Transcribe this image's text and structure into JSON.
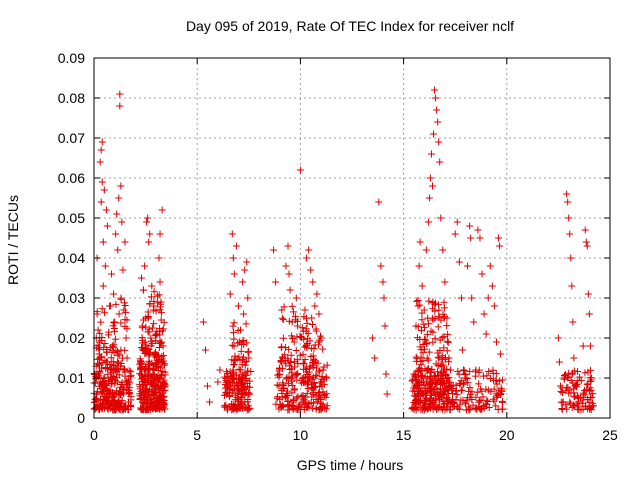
{
  "chart_data": {
    "type": "scatter",
    "title": "Day 095 of 2019, Rate Of TEC Index for receiver nclf",
    "xlabel": "GPS time / hours",
    "ylabel": "ROTI / TECUs",
    "xlim": [
      0,
      25
    ],
    "ylim": [
      0,
      0.09
    ],
    "xticks": [
      0,
      5,
      10,
      15,
      20,
      25
    ],
    "xtick_labels": [
      "0",
      "5",
      "10",
      "15",
      "20",
      "25"
    ],
    "yticks": [
      0,
      0.01,
      0.02,
      0.03,
      0.04,
      0.05,
      0.06,
      0.07,
      0.08,
      0.09
    ],
    "ytick_labels": [
      "0",
      "0.01",
      "0.02",
      "0.03",
      "0.04",
      "0.05",
      "0.06",
      "0.07",
      "0.08",
      "0.09"
    ],
    "grid": true,
    "marker": "plus",
    "color": "#e00000",
    "series": [
      {
        "name": "ROTI",
        "points": [
          [
            0.05,
            0.004
          ],
          [
            0.1,
            0.011
          ],
          [
            0.15,
            0.026
          ],
          [
            0.15,
            0.04
          ],
          [
            0.2,
            0.022
          ],
          [
            0.25,
            0.016
          ],
          [
            0.3,
            0.064
          ],
          [
            0.3,
            0.009
          ],
          [
            0.35,
            0.067
          ],
          [
            0.35,
            0.054
          ],
          [
            0.4,
            0.069
          ],
          [
            0.4,
            0.059
          ],
          [
            0.45,
            0.033
          ],
          [
            0.45,
            0.044
          ],
          [
            0.5,
            0.057
          ],
          [
            0.5,
            0.008
          ],
          [
            0.55,
            0.038
          ],
          [
            0.6,
            0.052
          ],
          [
            0.6,
            0.014
          ],
          [
            0.65,
            0.048
          ],
          [
            0.7,
            0.005
          ],
          [
            0.75,
            0.028
          ],
          [
            0.8,
            0.012
          ],
          [
            0.85,
            0.036
          ],
          [
            0.9,
            0.018
          ],
          [
            0.95,
            0.031
          ],
          [
            1.0,
            0.024
          ],
          [
            1.05,
            0.046
          ],
          [
            1.1,
            0.051
          ],
          [
            1.15,
            0.042
          ],
          [
            1.2,
            0.055
          ],
          [
            1.25,
            0.081
          ],
          [
            1.25,
            0.078
          ],
          [
            1.3,
            0.058
          ],
          [
            1.35,
            0.049
          ],
          [
            1.4,
            0.037
          ],
          [
            1.45,
            0.027
          ],
          [
            1.5,
            0.044
          ],
          [
            1.55,
            0.02
          ],
          [
            1.6,
            0.015
          ],
          [
            1.7,
            0.006
          ],
          [
            2.3,
            0.035
          ],
          [
            2.35,
            0.01
          ],
          [
            2.4,
            0.032
          ],
          [
            2.45,
            0.038
          ],
          [
            2.5,
            0.025
          ],
          [
            2.55,
            0.049
          ],
          [
            2.6,
            0.05
          ],
          [
            2.65,
            0.044
          ],
          [
            2.7,
            0.046
          ],
          [
            2.75,
            0.02
          ],
          [
            2.8,
            0.033
          ],
          [
            2.85,
            0.012
          ],
          [
            2.9,
            0.028
          ],
          [
            2.95,
            0.008
          ],
          [
            3.0,
            0.021
          ],
          [
            3.05,
            0.005
          ],
          [
            3.1,
            0.014
          ],
          [
            3.15,
            0.04
          ],
          [
            3.2,
            0.046
          ],
          [
            3.2,
            0.034
          ],
          [
            3.25,
            0.029
          ],
          [
            3.3,
            0.052
          ],
          [
            3.35,
            0.018
          ],
          [
            3.4,
            0.003
          ],
          [
            5.3,
            0.024
          ],
          [
            5.4,
            0.017
          ],
          [
            5.5,
            0.008
          ],
          [
            5.6,
            0.004
          ],
          [
            6.0,
            0.009
          ],
          [
            6.1,
            0.012
          ],
          [
            6.6,
            0.031
          ],
          [
            6.7,
            0.046
          ],
          [
            6.75,
            0.04
          ],
          [
            6.8,
            0.036
          ],
          [
            6.9,
            0.043
          ],
          [
            7.0,
            0.028
          ],
          [
            7.1,
            0.022
          ],
          [
            7.2,
            0.034
          ],
          [
            7.25,
            0.026
          ],
          [
            7.3,
            0.037
          ],
          [
            7.4,
            0.039
          ],
          [
            7.45,
            0.03
          ],
          [
            7.5,
            0.015
          ],
          [
            7.55,
            0.006
          ],
          [
            8.7,
            0.042
          ],
          [
            8.8,
            0.034
          ],
          [
            9.1,
            0.027
          ],
          [
            9.3,
            0.038
          ],
          [
            9.4,
            0.043
          ],
          [
            9.45,
            0.036
          ],
          [
            9.5,
            0.032
          ],
          [
            9.6,
            0.024
          ],
          [
            9.7,
            0.019
          ],
          [
            9.8,
            0.03
          ],
          [
            10.0,
            0.062
          ],
          [
            10.3,
            0.04
          ],
          [
            10.4,
            0.042
          ],
          [
            10.5,
            0.037
          ],
          [
            10.6,
            0.034
          ],
          [
            10.7,
            0.028
          ],
          [
            10.8,
            0.031
          ],
          [
            10.9,
            0.026
          ],
          [
            11.0,
            0.02
          ],
          [
            11.1,
            0.012
          ],
          [
            13.5,
            0.02
          ],
          [
            13.6,
            0.015
          ],
          [
            13.8,
            0.054
          ],
          [
            13.9,
            0.038
          ],
          [
            14.0,
            0.034
          ],
          [
            14.05,
            0.03
          ],
          [
            14.1,
            0.023
          ],
          [
            14.15,
            0.011
          ],
          [
            14.2,
            0.006
          ],
          [
            15.5,
            0.011
          ],
          [
            15.6,
            0.023
          ],
          [
            15.7,
            0.028
          ],
          [
            15.75,
            0.038
          ],
          [
            15.8,
            0.044
          ],
          [
            15.9,
            0.033
          ],
          [
            16.0,
            0.027
          ],
          [
            16.1,
            0.042
          ],
          [
            16.2,
            0.049
          ],
          [
            16.25,
            0.055
          ],
          [
            16.3,
            0.06
          ],
          [
            16.35,
            0.066
          ],
          [
            16.4,
            0.058
          ],
          [
            16.45,
            0.071
          ],
          [
            16.5,
            0.082
          ],
          [
            16.55,
            0.08
          ],
          [
            16.6,
            0.077
          ],
          [
            16.65,
            0.074
          ],
          [
            16.7,
            0.069
          ],
          [
            16.75,
            0.064
          ],
          [
            16.8,
            0.05
          ],
          [
            16.9,
            0.042
          ],
          [
            17.0,
            0.034
          ],
          [
            17.1,
            0.025
          ],
          [
            17.2,
            0.015
          ],
          [
            17.3,
            0.008
          ],
          [
            17.5,
            0.046
          ],
          [
            17.6,
            0.049
          ],
          [
            17.7,
            0.039
          ],
          [
            17.8,
            0.03
          ],
          [
            17.85,
            0.017
          ],
          [
            17.9,
            0.012
          ],
          [
            18.0,
            0.01
          ],
          [
            18.1,
            0.038
          ],
          [
            18.2,
            0.048
          ],
          [
            18.25,
            0.045
          ],
          [
            18.3,
            0.03
          ],
          [
            18.4,
            0.024
          ],
          [
            18.5,
            0.012
          ],
          [
            18.6,
            0.047
          ],
          [
            18.7,
            0.045
          ],
          [
            18.8,
            0.036
          ],
          [
            18.9,
            0.026
          ],
          [
            19.0,
            0.021
          ],
          [
            19.1,
            0.03
          ],
          [
            19.2,
            0.038
          ],
          [
            19.3,
            0.033
          ],
          [
            19.4,
            0.028
          ],
          [
            19.5,
            0.019
          ],
          [
            19.6,
            0.045
          ],
          [
            19.65,
            0.043
          ],
          [
            19.7,
            0.016
          ],
          [
            19.75,
            0.007
          ],
          [
            22.5,
            0.02
          ],
          [
            22.55,
            0.014
          ],
          [
            22.6,
            0.008
          ],
          [
            22.9,
            0.056
          ],
          [
            22.95,
            0.054
          ],
          [
            23.0,
            0.05
          ],
          [
            23.05,
            0.046
          ],
          [
            23.1,
            0.04
          ],
          [
            23.15,
            0.033
          ],
          [
            23.2,
            0.024
          ],
          [
            23.25,
            0.015
          ],
          [
            23.3,
            0.008
          ],
          [
            23.7,
            0.018
          ],
          [
            23.8,
            0.047
          ],
          [
            23.85,
            0.044
          ],
          [
            23.9,
            0.043
          ],
          [
            23.95,
            0.031
          ],
          [
            24.0,
            0.026
          ],
          [
            24.05,
            0.018
          ],
          [
            24.1,
            0.01
          ]
        ],
        "dense_bands": [
          {
            "x_min": 0.0,
            "x_max": 1.8,
            "y_min": 0.002,
            "y_max": 0.013,
            "count": 220
          },
          {
            "x_min": 0.1,
            "x_max": 1.6,
            "y_min": 0.013,
            "y_max": 0.03,
            "count": 70
          },
          {
            "x_min": 2.2,
            "x_max": 3.45,
            "y_min": 0.002,
            "y_max": 0.016,
            "count": 260
          },
          {
            "x_min": 2.3,
            "x_max": 3.4,
            "y_min": 0.016,
            "y_max": 0.032,
            "count": 70
          },
          {
            "x_min": 6.3,
            "x_max": 7.6,
            "y_min": 0.002,
            "y_max": 0.012,
            "count": 140
          },
          {
            "x_min": 6.6,
            "x_max": 7.5,
            "y_min": 0.012,
            "y_max": 0.024,
            "count": 35
          },
          {
            "x_min": 8.8,
            "x_max": 11.3,
            "y_min": 0.002,
            "y_max": 0.014,
            "count": 190
          },
          {
            "x_min": 9.0,
            "x_max": 11.1,
            "y_min": 0.014,
            "y_max": 0.028,
            "count": 70
          },
          {
            "x_min": 15.4,
            "x_max": 17.4,
            "y_min": 0.002,
            "y_max": 0.012,
            "count": 230
          },
          {
            "x_min": 15.6,
            "x_max": 17.2,
            "y_min": 0.012,
            "y_max": 0.03,
            "count": 90
          },
          {
            "x_min": 17.4,
            "x_max": 19.8,
            "y_min": 0.002,
            "y_max": 0.012,
            "count": 110
          },
          {
            "x_min": 22.6,
            "x_max": 24.2,
            "y_min": 0.002,
            "y_max": 0.012,
            "count": 90
          }
        ]
      }
    ]
  }
}
